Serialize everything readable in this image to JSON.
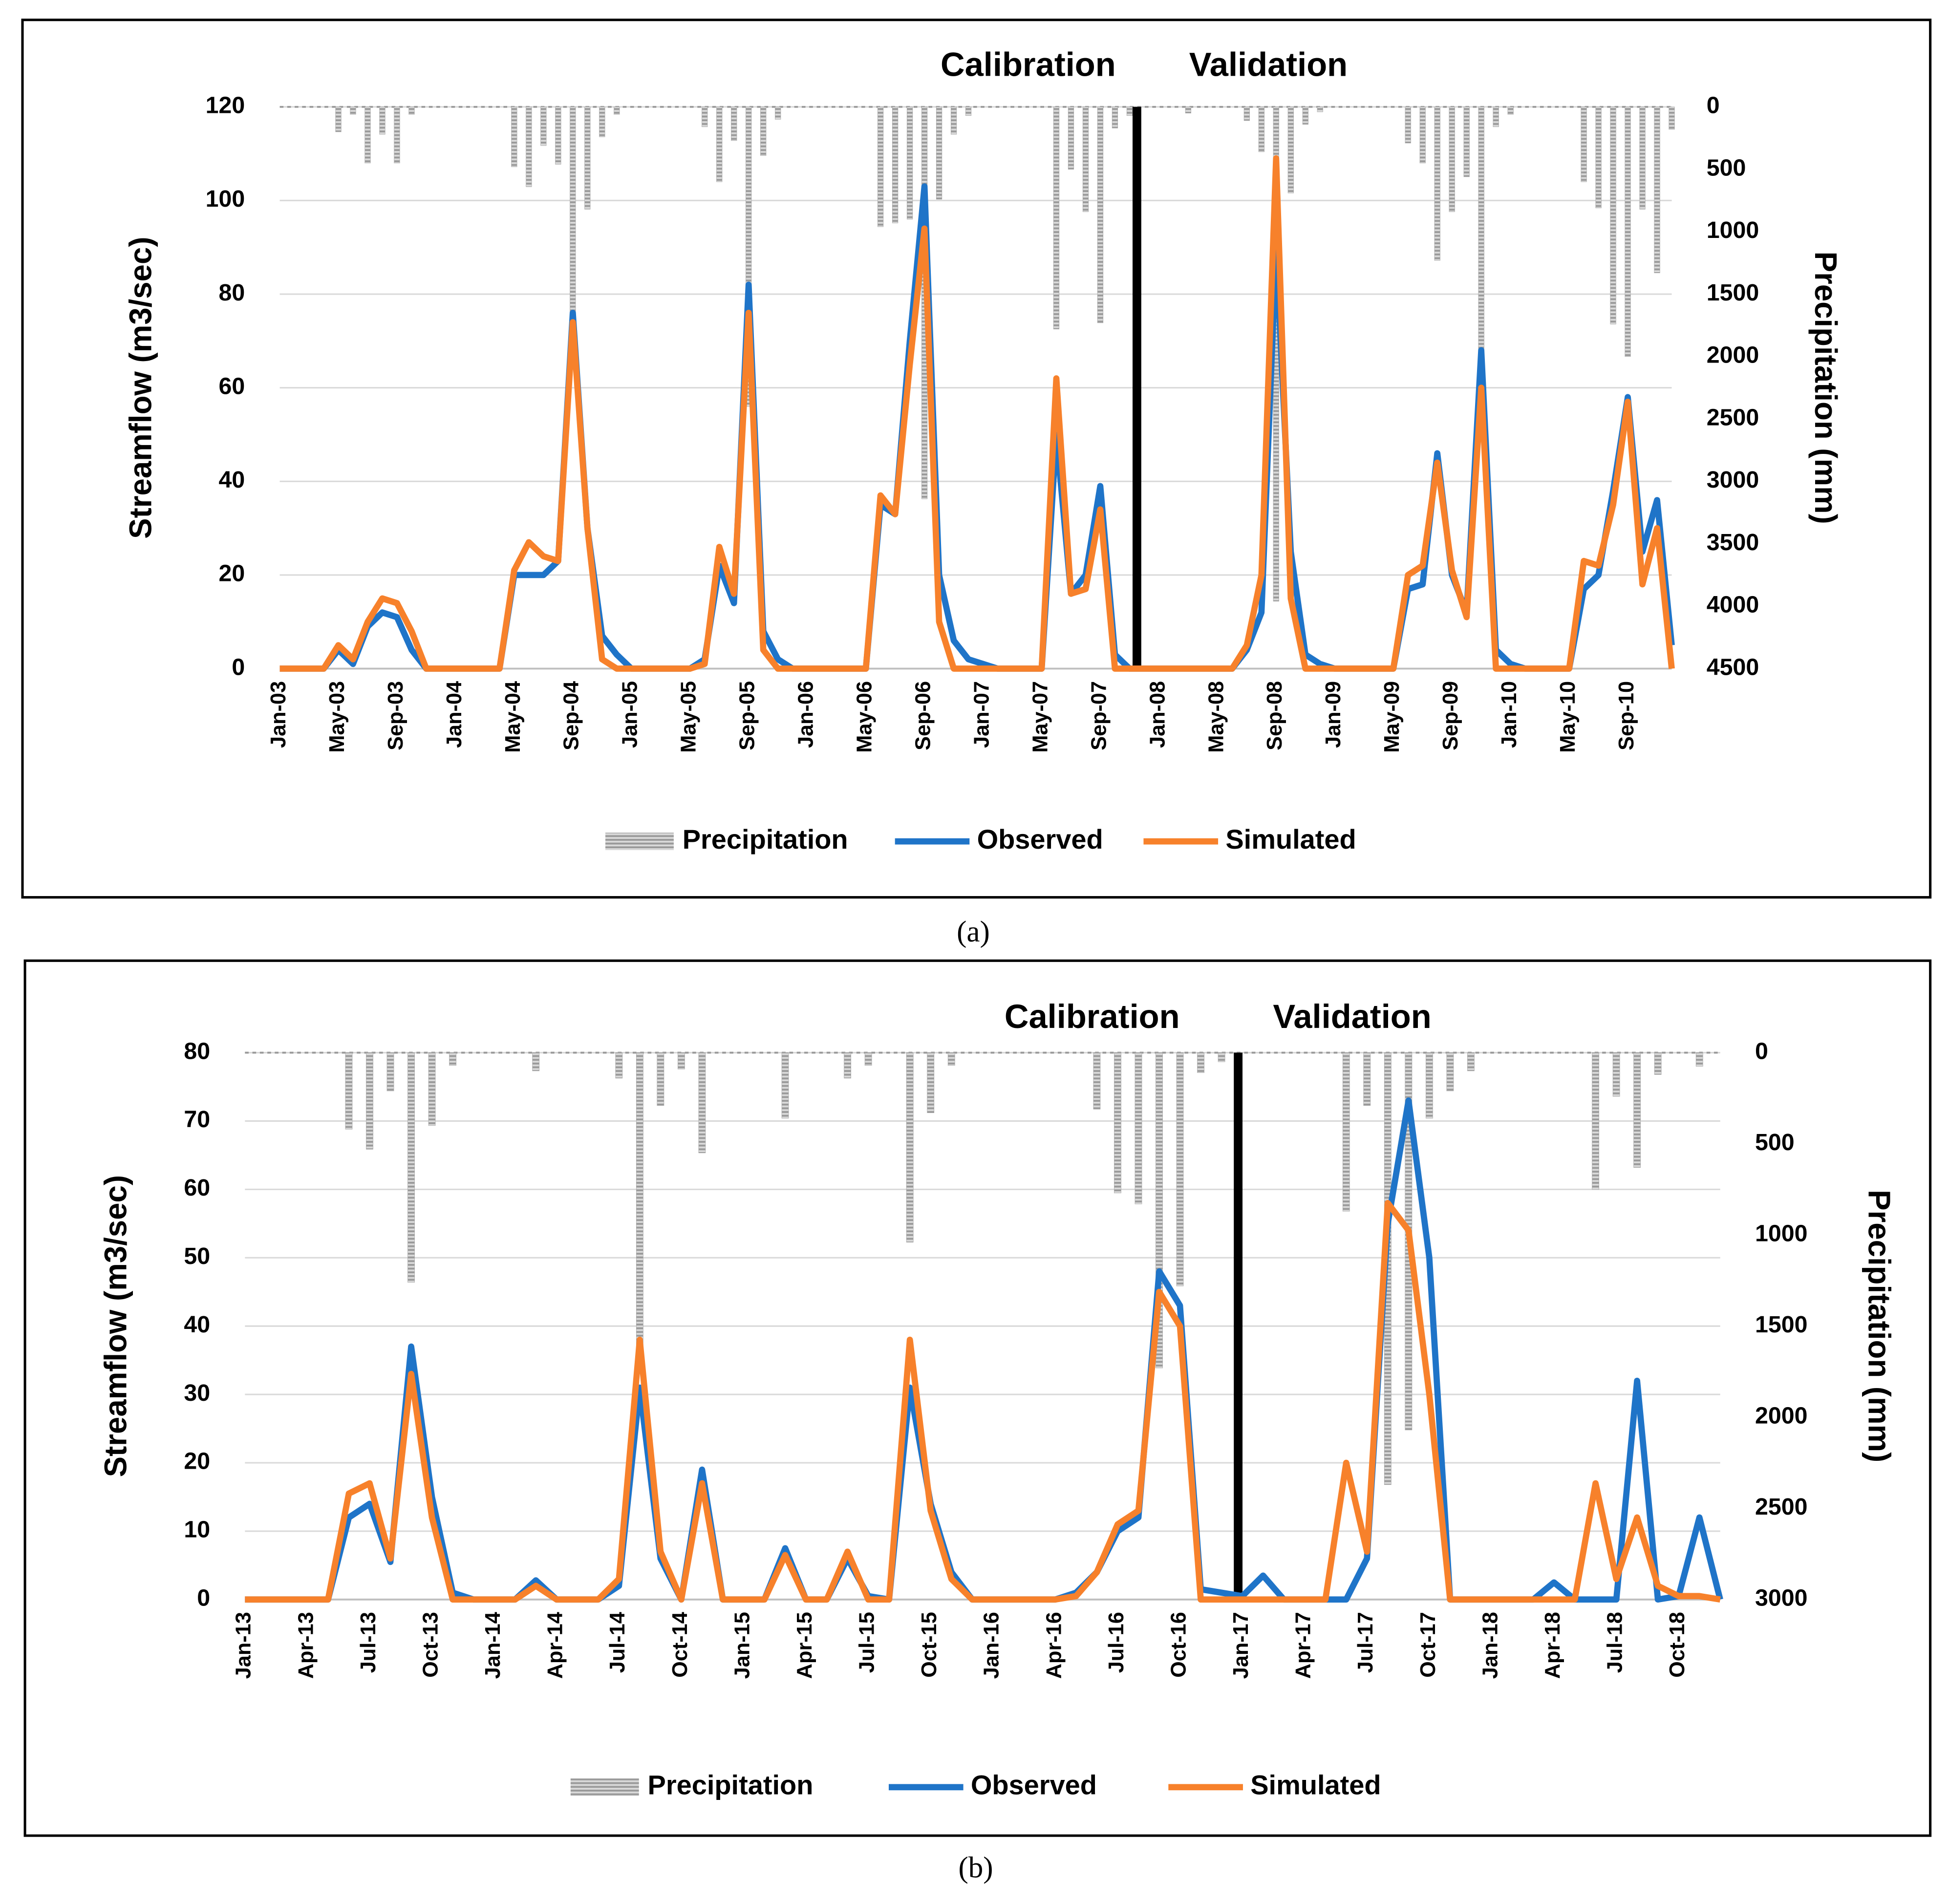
{
  "chart_data": [
    {
      "type": "combo",
      "caption": "(a)",
      "calibration_label": "Calibration",
      "validation_label": "Validation",
      "divider_at": 58.5,
      "ylabel": "Streamflow (m3/sec)",
      "y2label": "Precipitation (mm)",
      "categories": [
        "Jan-03",
        null,
        null,
        null,
        "May-03",
        null,
        null,
        null,
        "Sep-03",
        null,
        null,
        null,
        "Jan-04",
        null,
        null,
        null,
        "May-04",
        null,
        null,
        null,
        "Sep-04",
        null,
        null,
        null,
        "Jan-05",
        null,
        null,
        null,
        "May-05",
        null,
        null,
        null,
        "Sep-05",
        null,
        null,
        null,
        "Jan-06",
        null,
        null,
        null,
        "May-06",
        null,
        null,
        null,
        "Sep-06",
        null,
        null,
        null,
        "Jan-07",
        null,
        null,
        null,
        "May-07",
        null,
        null,
        null,
        "Sep-07",
        null,
        null,
        null,
        "Jan-08",
        null,
        null,
        null,
        "May-08",
        null,
        null,
        null,
        "Sep-08",
        null,
        null,
        null,
        "Jan-09",
        null,
        null,
        null,
        "May-09",
        null,
        null,
        null,
        "Sep-09",
        null,
        null,
        null,
        "Jan-10",
        null,
        null,
        null,
        "May-10",
        null,
        null,
        null,
        "Sep-10",
        null,
        null,
        null
      ],
      "ylim": [
        0,
        120
      ],
      "yticks": [
        0,
        20,
        40,
        60,
        80,
        100,
        120
      ],
      "y2lim": [
        0,
        4500
      ],
      "y2_reversed": true,
      "y2ticks": [
        0,
        500,
        1000,
        1500,
        2000,
        2500,
        3000,
        3500,
        4000,
        4500
      ],
      "grid": true,
      "series": [
        {
          "name": "Precipitation",
          "kind": "bar",
          "axis": "y2",
          "color": "#a6a6a6",
          "values": [
            0,
            0,
            0,
            0,
            200,
            60,
            450,
            220,
            450,
            60,
            0,
            0,
            0,
            0,
            0,
            0,
            480,
            640,
            310,
            460,
            1720,
            820,
            240,
            60,
            0,
            0,
            0,
            0,
            0,
            160,
            600,
            270,
            2400,
            390,
            100,
            0,
            0,
            0,
            0,
            0,
            0,
            960,
            930,
            900,
            3140,
            740,
            220,
            70,
            0,
            0,
            0,
            0,
            0,
            1780,
            500,
            840,
            1730,
            170,
            70,
            0,
            0,
            0,
            50,
            0,
            0,
            0,
            110,
            360,
            3960,
            690,
            140,
            40,
            0,
            0,
            0,
            0,
            0,
            290,
            450,
            1230,
            840,
            560,
            1940,
            160,
            60,
            0,
            0,
            0,
            0,
            600,
            810,
            1740,
            2000,
            820,
            1330,
            180
          ]
        },
        {
          "name": "Observed",
          "kind": "line",
          "color": "#1f74c8",
          "values": [
            0,
            0,
            0,
            0,
            4,
            1,
            9,
            12,
            11,
            4,
            0,
            0,
            0,
            0,
            0,
            0,
            20,
            20,
            20,
            23,
            76,
            30,
            7,
            3,
            0,
            0,
            0,
            0,
            0,
            2,
            22,
            14,
            82,
            8,
            2,
            0,
            0,
            0,
            0,
            0,
            0,
            35,
            33,
            70,
            103,
            20,
            6,
            2,
            1,
            0,
            0,
            0,
            0,
            50,
            16,
            20,
            39,
            3,
            0,
            0,
            0,
            0,
            0,
            0,
            0,
            0,
            4,
            12,
            90,
            25,
            3,
            1,
            0,
            0,
            0,
            0,
            0,
            17,
            18,
            46,
            20,
            12,
            68,
            4,
            1,
            0,
            0,
            0,
            0,
            17,
            20,
            38,
            58,
            25,
            36,
            5
          ]
        },
        {
          "name": "Simulated",
          "kind": "line",
          "color": "#f7812b",
          "values": [
            0,
            0,
            0,
            0,
            5,
            2,
            10,
            15,
            14,
            8,
            0,
            0,
            0,
            0,
            0,
            0,
            21,
            27,
            24,
            23,
            74,
            30,
            2,
            0,
            0,
            0,
            0,
            0,
            0,
            1,
            26,
            16,
            76,
            4,
            0,
            0,
            0,
            0,
            0,
            0,
            0,
            37,
            33,
            65,
            94,
            10,
            0,
            0,
            0,
            0,
            0,
            0,
            0,
            62,
            16,
            17,
            34,
            0,
            0,
            0,
            0,
            0,
            0,
            0,
            0,
            0,
            5,
            20,
            109,
            15,
            0,
            0,
            0,
            0,
            0,
            0,
            0,
            20,
            22,
            44,
            21,
            11,
            60,
            0,
            0,
            0,
            0,
            0,
            0,
            23,
            22,
            35,
            57,
            18,
            30,
            0
          ]
        }
      ]
    },
    {
      "type": "combo",
      "caption": "(b)",
      "calibration_label": "Calibration",
      "validation_label": "Validation",
      "divider_at": 47.8,
      "ylabel": "Streamflow (m3/sec)",
      "y2label": "Precipitation (mm)",
      "categories": [
        "Jan-13",
        null,
        null,
        "Apr-13",
        null,
        null,
        "Jul-13",
        null,
        null,
        "Oct-13",
        null,
        null,
        "Jan-14",
        null,
        null,
        "Apr-14",
        null,
        null,
        "Jul-14",
        null,
        null,
        "Oct-14",
        null,
        null,
        "Jan-15",
        null,
        null,
        "Apr-15",
        null,
        null,
        "Jul-15",
        null,
        null,
        "Oct-15",
        null,
        null,
        "Jan-16",
        null,
        null,
        "Apr-16",
        null,
        null,
        "Jul-16",
        null,
        null,
        "Oct-16",
        null,
        null,
        "Jan-17",
        null,
        null,
        "Apr-17",
        null,
        null,
        "Jul-17",
        null,
        null,
        "Oct-17",
        null,
        null,
        "Jan-18",
        null,
        null,
        "Apr-18",
        null,
        null,
        "Jul-18",
        null,
        null,
        "Oct-18",
        null,
        null
      ],
      "ylim": [
        0,
        80
      ],
      "yticks": [
        0,
        10,
        20,
        30,
        40,
        50,
        60,
        70,
        80
      ],
      "y2lim": [
        0,
        3000
      ],
      "y2_reversed": true,
      "y2ticks": [
        0,
        500,
        1000,
        1500,
        2000,
        2500,
        3000
      ],
      "grid": true,
      "series": [
        {
          "name": "Precipitation",
          "kind": "bar",
          "axis": "y2",
          "color": "#a6a6a6",
          "values": [
            0,
            0,
            0,
            0,
            0,
            420,
            530,
            210,
            1260,
            400,
            70,
            0,
            0,
            0,
            100,
            0,
            0,
            0,
            140,
            1730,
            290,
            90,
            550,
            0,
            0,
            0,
            360,
            0,
            0,
            140,
            70,
            0,
            1040,
            330,
            70,
            0,
            0,
            0,
            0,
            0,
            0,
            310,
            770,
            830,
            1730,
            1280,
            110,
            50,
            0,
            0,
            0,
            0,
            0,
            870,
            290,
            2370,
            2070,
            360,
            210,
            100,
            0,
            0,
            0,
            0,
            0,
            750,
            240,
            630,
            120,
            0,
            75,
            0
          ]
        },
        {
          "name": "Observed",
          "kind": "line",
          "color": "#1f74c8",
          "values": [
            0,
            0,
            0,
            0,
            0,
            12,
            14,
            5.5,
            37,
            15,
            1,
            0,
            0,
            0,
            2.8,
            0,
            0,
            0,
            2,
            31,
            6,
            0,
            19,
            0,
            0,
            0,
            7.5,
            0,
            0,
            6,
            0.5,
            0,
            31,
            14,
            4,
            0,
            0,
            0,
            0,
            0,
            1,
            4,
            10,
            12,
            48,
            43,
            1.5,
            1,
            0.5,
            3.5,
            0,
            0,
            0,
            0,
            6,
            55,
            73,
            50,
            0,
            0,
            0,
            0,
            0,
            2.5,
            0,
            0,
            0,
            32,
            0,
            0.5,
            12,
            0
          ]
        },
        {
          "name": "Simulated",
          "kind": "line",
          "color": "#f7812b",
          "values": [
            0,
            0,
            0,
            0,
            0,
            15.5,
            17,
            6,
            33,
            12,
            0,
            0,
            0,
            0,
            2,
            0,
            0,
            0,
            3,
            38,
            7,
            0,
            17,
            0,
            0,
            0,
            6.5,
            0,
            0,
            7,
            0,
            0,
            38,
            13,
            3,
            0,
            0,
            0,
            0,
            0,
            0.5,
            4,
            11,
            13,
            45,
            40,
            0,
            0,
            0,
            0,
            0,
            0,
            0,
            20,
            7,
            58,
            54,
            30,
            0,
            0,
            0,
            0,
            0,
            0,
            0,
            17,
            3,
            12,
            2,
            0.5,
            0.5,
            0
          ]
        }
      ]
    }
  ]
}
